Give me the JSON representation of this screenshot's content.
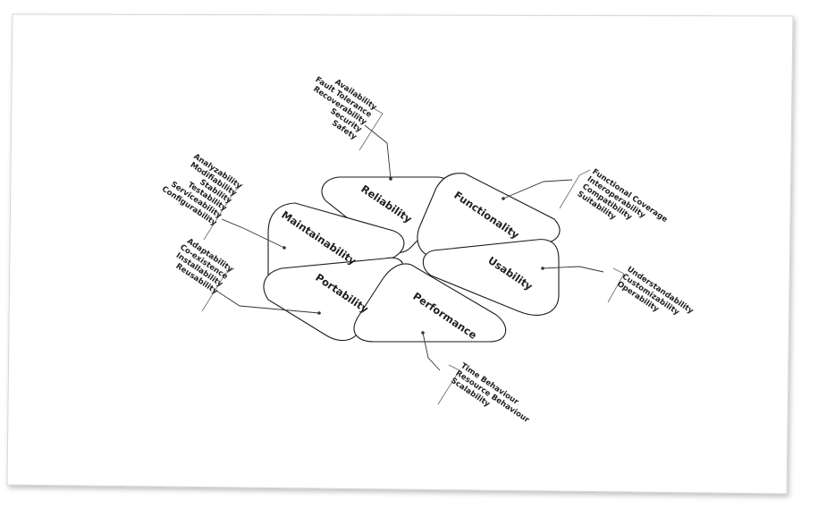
{
  "diagram": {
    "petals": [
      {
        "id": "reliability",
        "label": "Reliability",
        "attributes": [
          "Availability",
          "Fault Tolerance",
          "Recoverability",
          "Security",
          "Safety"
        ]
      },
      {
        "id": "functionality",
        "label": "Functionality",
        "attributes": [
          "Functional Coverage",
          "Interoperability",
          "Compatibility",
          "Suitability"
        ]
      },
      {
        "id": "maintainability",
        "label": "Maintainability",
        "attributes": [
          "Analyzability",
          "Modifiability",
          "Stability",
          "Testability",
          "Serviceability",
          "Configurability"
        ]
      },
      {
        "id": "usability",
        "label": "Usability",
        "attributes": [
          "Understandability",
          "Customizability",
          "Operability"
        ]
      },
      {
        "id": "portability",
        "label": "Portability",
        "attributes": [
          "Adaptability",
          "Co-existence",
          "Installability",
          "Reusability"
        ]
      },
      {
        "id": "performance",
        "label": "Performance",
        "attributes": [
          "Time Behaviour",
          "Resource Behaviour",
          "Scalability"
        ]
      }
    ]
  }
}
